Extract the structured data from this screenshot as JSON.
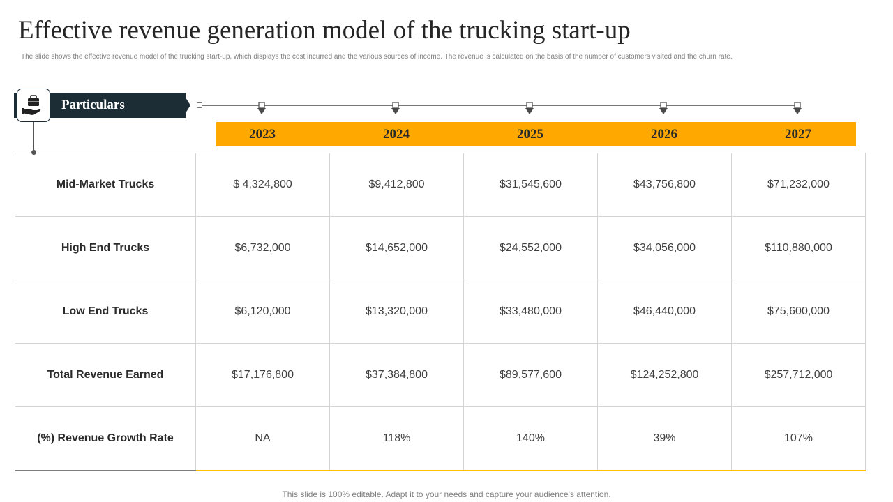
{
  "page": {
    "title": "Effective revenue generation model of the trucking start-up",
    "subtitle": "The slide shows the effective revenue model of the trucking start-up, which displays the cost incurred and the various sources of income. The revenue is calculated on the basis of the number of customers visited and the churn rate.",
    "footer": "This slide is 100% editable. Adapt it to your needs and capture your audience's attention."
  },
  "header": {
    "label": "Particulars",
    "icon": "briefcase-hand-icon",
    "bar_color": "#1d2d35",
    "accent_color": "#ffa800"
  },
  "table": {
    "years": [
      "2023",
      "2024",
      "2025",
      "2026",
      "2027"
    ],
    "rows": [
      {
        "label": "Mid-Market  Trucks",
        "values": [
          "$ 4,324,800",
          "$9,412,800",
          "$31,545,600",
          "$43,756,800",
          "$71,232,000"
        ]
      },
      {
        "label": "High End Trucks",
        "values": [
          "$6,732,000",
          "$14,652,000",
          "$24,552,000",
          "$34,056,000",
          "$110,880,000"
        ]
      },
      {
        "label": "Low End Trucks",
        "values": [
          "$6,120,000",
          "$13,320,000",
          "$33,480,000",
          "$46,440,000",
          "$75,600,000"
        ]
      },
      {
        "label": "Total Revenue Earned",
        "values": [
          "$17,176,800",
          "$37,384,800",
          "$89,577,600",
          "$124,252,800",
          "$257,712,000"
        ]
      },
      {
        "label": "(%) Revenue Growth Rate",
        "values": [
          "NA",
          "118%",
          "140%",
          "39%",
          "107%"
        ]
      }
    ]
  }
}
